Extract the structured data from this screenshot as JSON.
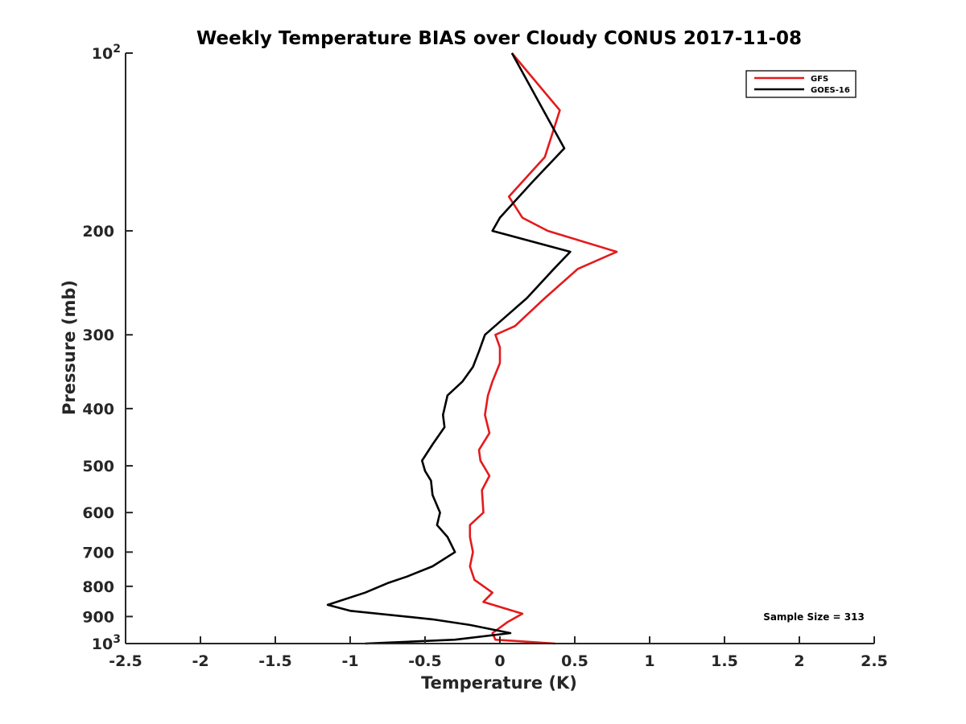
{
  "chart_data": {
    "type": "line",
    "title": "Weekly Temperature BIAS over Cloudy CONUS 2017-11-08",
    "xlabel": "Temperature (K)",
    "ylabel": "Pressure (mb)",
    "xlim": [
      -2.5,
      2.5
    ],
    "ylim": [
      100,
      1000
    ],
    "y_scale": "log",
    "y_reversed": true,
    "grid": false,
    "legend_position": "top-right",
    "x_ticks": [
      {
        "value": -2.5,
        "label": "-2.5"
      },
      {
        "value": -2,
        "label": "-2"
      },
      {
        "value": -1.5,
        "label": "-1.5"
      },
      {
        "value": -1,
        "label": "-1"
      },
      {
        "value": -0.5,
        "label": "-0.5"
      },
      {
        "value": 0,
        "label": "0"
      },
      {
        "value": 0.5,
        "label": "0.5"
      },
      {
        "value": 1,
        "label": "1"
      },
      {
        "value": 1.5,
        "label": "1.5"
      },
      {
        "value": 2,
        "label": "2"
      },
      {
        "value": 2.5,
        "label": "2.5"
      }
    ],
    "y_ticks": [
      {
        "value": 100,
        "base": "10",
        "exp": "2"
      },
      {
        "value": 200,
        "base": "200",
        "exp": ""
      },
      {
        "value": 300,
        "base": "300",
        "exp": ""
      },
      {
        "value": 400,
        "base": "400",
        "exp": ""
      },
      {
        "value": 500,
        "base": "500",
        "exp": ""
      },
      {
        "value": 600,
        "base": "600",
        "exp": ""
      },
      {
        "value": 700,
        "base": "700",
        "exp": ""
      },
      {
        "value": 800,
        "base": "800",
        "exp": ""
      },
      {
        "value": 900,
        "base": "900",
        "exp": ""
      },
      {
        "value": 1000,
        "base": "10",
        "exp": "3"
      }
    ],
    "annotation": "Sample Size = 313",
    "series": [
      {
        "name": "GFS",
        "color": "#e41a1c",
        "points": [
          [
            0.08,
            100
          ],
          [
            0.4,
            125
          ],
          [
            0.3,
            150
          ],
          [
            0.06,
            175
          ],
          [
            0.15,
            190
          ],
          [
            0.32,
            200
          ],
          [
            0.78,
            217
          ],
          [
            0.52,
            232
          ],
          [
            0.3,
            260
          ],
          [
            0.1,
            290
          ],
          [
            -0.03,
            300
          ],
          [
            0.0,
            315
          ],
          [
            0.0,
            335
          ],
          [
            -0.05,
            360
          ],
          [
            -0.08,
            380
          ],
          [
            -0.1,
            410
          ],
          [
            -0.07,
            440
          ],
          [
            -0.14,
            470
          ],
          [
            -0.13,
            490
          ],
          [
            -0.07,
            520
          ],
          [
            -0.12,
            550
          ],
          [
            -0.11,
            600
          ],
          [
            -0.2,
            630
          ],
          [
            -0.2,
            660
          ],
          [
            -0.18,
            700
          ],
          [
            -0.2,
            740
          ],
          [
            -0.17,
            780
          ],
          [
            -0.05,
            820
          ],
          [
            -0.11,
            850
          ],
          [
            0.15,
            890
          ],
          [
            0.05,
            920
          ],
          [
            -0.05,
            960
          ],
          [
            -0.03,
            985
          ],
          [
            0.37,
            1000
          ]
        ]
      },
      {
        "name": "GOES-16",
        "color": "#000000",
        "points": [
          [
            0.08,
            100
          ],
          [
            0.43,
            145
          ],
          [
            0.22,
            165
          ],
          [
            0.0,
            190
          ],
          [
            -0.05,
            200
          ],
          [
            0.47,
            217
          ],
          [
            0.36,
            232
          ],
          [
            0.18,
            260
          ],
          [
            -0.1,
            300
          ],
          [
            -0.14,
            320
          ],
          [
            -0.18,
            340
          ],
          [
            -0.25,
            360
          ],
          [
            -0.35,
            380
          ],
          [
            -0.38,
            410
          ],
          [
            -0.37,
            430
          ],
          [
            -0.45,
            460
          ],
          [
            -0.52,
            490
          ],
          [
            -0.5,
            510
          ],
          [
            -0.46,
            530
          ],
          [
            -0.45,
            560
          ],
          [
            -0.4,
            600
          ],
          [
            -0.42,
            630
          ],
          [
            -0.35,
            660
          ],
          [
            -0.3,
            700
          ],
          [
            -0.45,
            740
          ],
          [
            -0.62,
            770
          ],
          [
            -0.75,
            790
          ],
          [
            -0.9,
            820
          ],
          [
            -1.15,
            860
          ],
          [
            -1.0,
            880
          ],
          [
            -0.45,
            910
          ],
          [
            -0.2,
            930
          ],
          [
            0.07,
            960
          ],
          [
            -0.3,
            985
          ],
          [
            -0.9,
            1000
          ]
        ]
      }
    ]
  }
}
